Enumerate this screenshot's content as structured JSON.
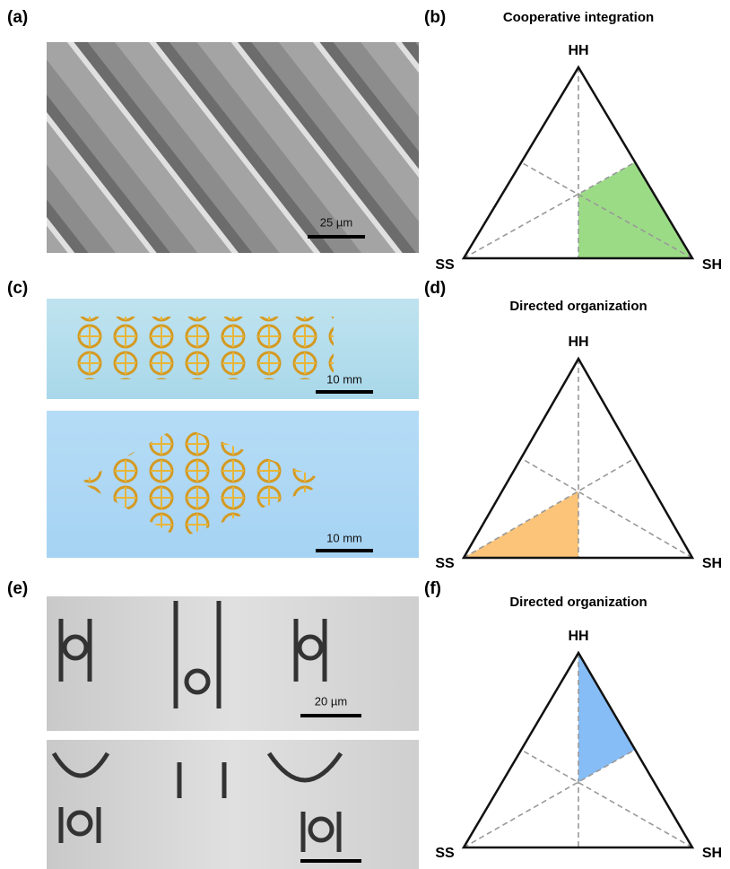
{
  "panels": {
    "a": {
      "label": "(a)",
      "scale_bar": "25 µm"
    },
    "b": {
      "label": "(b)",
      "title": "Cooperative integration",
      "vertices": [
        "HH",
        "SS",
        "SH"
      ]
    },
    "c": {
      "label": "(c)",
      "scale_bars": [
        "10 mm",
        "10 mm"
      ]
    },
    "d": {
      "label": "(d)",
      "title": "Directed organization",
      "vertices": [
        "HH",
        "SS",
        "SH"
      ]
    },
    "e": {
      "label": "(e)",
      "scale_bar": "20 µm"
    },
    "f": {
      "label": "(f)",
      "title": "Directed organization",
      "vertices": [
        "HH",
        "SS",
        "SH"
      ]
    }
  }
}
